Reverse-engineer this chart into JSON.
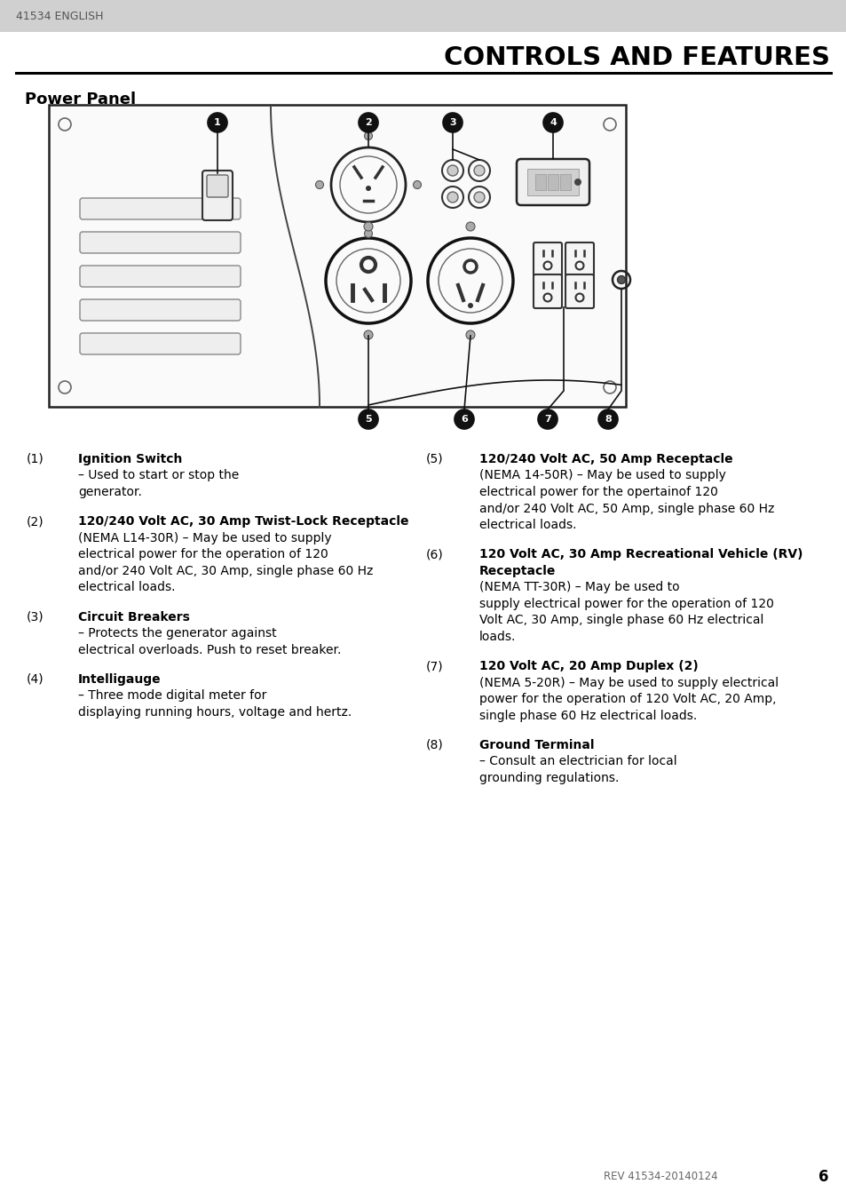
{
  "title": "CONTROLS AND FEATURES",
  "header_label": "41534 ENGLISH",
  "section_title": "Power Panel",
  "bg_color": "#ffffff",
  "header_bg": "#d8d8d8",
  "footer_text": "REV 41534-20140124",
  "footer_page": "6",
  "items_left": [
    {
      "num": "(1)",
      "bold": "Ignition Switch",
      "dash": " – ",
      "rest": "Used to start or stop the\ngenerator."
    },
    {
      "num": "(2)",
      "bold": "120/240 Volt AC, 30 Amp Twist-Lock Receptacle",
      "dash": "",
      "rest": "(NEMA L14-30R) – May be used to supply\nelectrical power for the operation of 120\nand/or 240 Volt AC, 30 Amp, single phase 60 Hz\nelectrical loads."
    },
    {
      "num": "(3)",
      "bold": "Circuit Breakers",
      "dash": " – ",
      "rest": "Protects the generator against\nelectrical overloads. Push to reset breaker."
    },
    {
      "num": "(4)",
      "bold": "Intelligauge",
      "dash": " – ",
      "rest": "Three mode digital meter for\ndisplaying running hours, voltage and hertz."
    }
  ],
  "items_right": [
    {
      "num": "(5)",
      "bold": "120/240 Volt AC, 50 Amp Receptacle",
      "dash": "",
      "rest": "(NEMA 14-50R) – May be used to supply\nelectrical power for the opertainof 120\nand/or 240 Volt AC, 50 Amp, single phase 60 Hz\nelectrical loads."
    },
    {
      "num": "(6)",
      "bold": "120 Volt AC, 30 Amp Recreational Vehicle (RV)",
      "bold2": "Receptacle",
      "dash": "",
      "rest": "(NEMA TT-30R) – May be used to\nsupply electrical power for the operation of 120\nVolt AC, 30 Amp, single phase 60 Hz electrical\nloads."
    },
    {
      "num": "(7)",
      "bold": "120 Volt AC, 20 Amp Duplex (2)",
      "bold2": "",
      "dash": "",
      "rest": "(NEMA 5-20R) – May be used to supply electrical\npower for the operation of 120 Volt AC, 20 Amp,\nsingle phase 60 Hz electrical loads."
    },
    {
      "num": "(8)",
      "bold": "Ground Terminal",
      "bold2": "",
      "dash": " – ",
      "rest": "Consult an electrician for local\ngrounding regulations."
    }
  ]
}
